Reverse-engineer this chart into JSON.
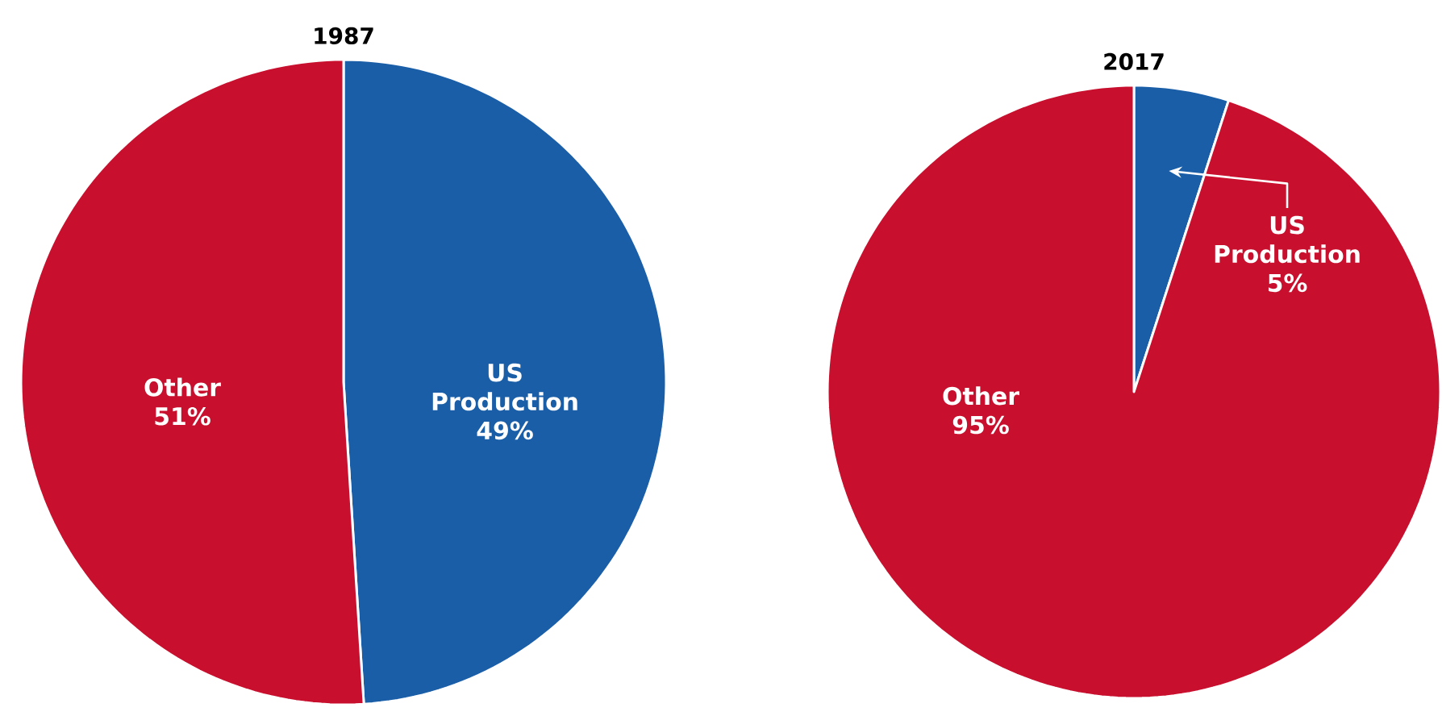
{
  "chart_data": [
    {
      "type": "pie",
      "title": "1987",
      "categories": [
        "US Production",
        "Other"
      ],
      "values": [
        49,
        51
      ],
      "colors": [
        "#1a5ea8",
        "#c8102e"
      ],
      "value_labels": [
        "49%",
        "51%"
      ]
    },
    {
      "type": "pie",
      "title": "2017",
      "categories": [
        "US Production",
        "Other"
      ],
      "values": [
        5,
        95
      ],
      "colors": [
        "#1a5ea8",
        "#c8102e"
      ],
      "value_labels": [
        "5%",
        "95%"
      ]
    }
  ]
}
